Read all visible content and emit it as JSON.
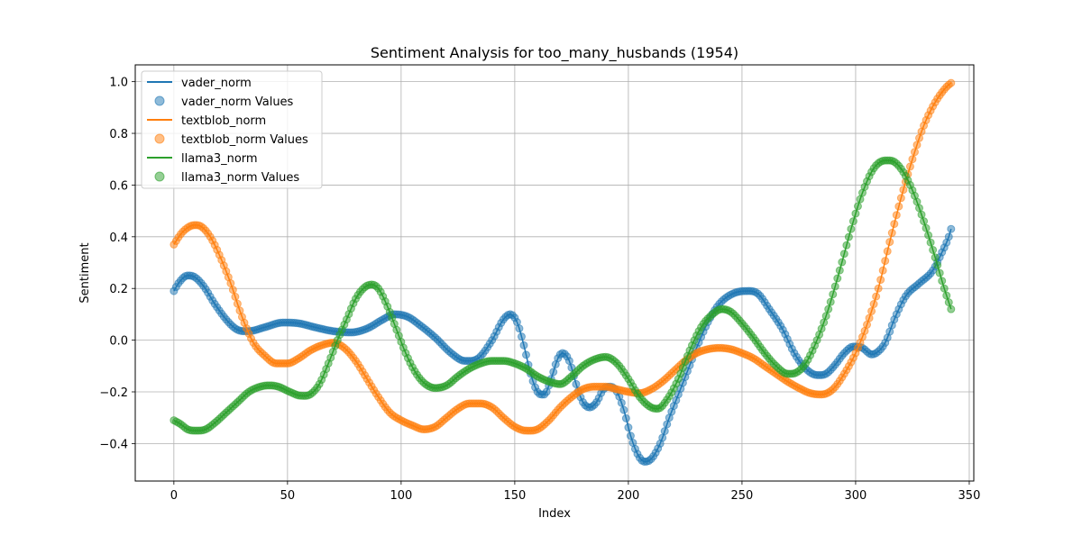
{
  "chart_data": {
    "type": "line",
    "title": "Sentiment Analysis for too_many_husbands (1954)",
    "xlabel": "Index",
    "ylabel": "Sentiment",
    "xlim": [
      -17,
      352
    ],
    "ylim": [
      -0.545,
      1.065
    ],
    "xticks": [
      0,
      50,
      100,
      150,
      200,
      250,
      300,
      350
    ],
    "yticks": [
      -0.4,
      -0.2,
      0.0,
      0.2,
      0.4,
      0.6,
      0.8,
      1.0
    ],
    "xtick_labels": [
      "0",
      "50",
      "100",
      "150",
      "200",
      "250",
      "300",
      "350"
    ],
    "ytick_labels": [
      "−0.4",
      "−0.2",
      "0.0",
      "0.2",
      "0.4",
      "0.6",
      "0.8",
      "1.0"
    ],
    "grid": true,
    "legend": "top-left",
    "n_points": 343,
    "series": [
      {
        "name": "vader_norm",
        "scatter_name": "vader_norm Values",
        "color": "#1f77b4",
        "keypoints": [
          [
            0,
            0.19
          ],
          [
            2,
            0.22
          ],
          [
            6,
            0.25
          ],
          [
            9,
            0.245
          ],
          [
            13,
            0.21
          ],
          [
            18,
            0.14
          ],
          [
            24,
            0.07
          ],
          [
            28,
            0.04
          ],
          [
            33,
            0.035
          ],
          [
            40,
            0.05
          ],
          [
            48,
            0.068
          ],
          [
            55,
            0.065
          ],
          [
            62,
            0.05
          ],
          [
            70,
            0.035
          ],
          [
            78,
            0.03
          ],
          [
            85,
            0.045
          ],
          [
            92,
            0.08
          ],
          [
            97,
            0.1
          ],
          [
            103,
            0.09
          ],
          [
            108,
            0.06
          ],
          [
            115,
            0.01
          ],
          [
            122,
            -0.05
          ],
          [
            128,
            -0.08
          ],
          [
            134,
            -0.07
          ],
          [
            140,
            0.0
          ],
          [
            145,
            0.08
          ],
          [
            148,
            0.1
          ],
          [
            151,
            0.07
          ],
          [
            154,
            -0.02
          ],
          [
            157,
            -0.13
          ],
          [
            160,
            -0.2
          ],
          [
            163,
            -0.21
          ],
          [
            166,
            -0.15
          ],
          [
            169,
            -0.07
          ],
          [
            171,
            -0.05
          ],
          [
            174,
            -0.08
          ],
          [
            177,
            -0.17
          ],
          [
            180,
            -0.24
          ],
          [
            183,
            -0.26
          ],
          [
            186,
            -0.24
          ],
          [
            189,
            -0.19
          ],
          [
            192,
            -0.18
          ],
          [
            195,
            -0.2
          ],
          [
            198,
            -0.27
          ],
          [
            201,
            -0.37
          ],
          [
            204,
            -0.44
          ],
          [
            207,
            -0.47
          ],
          [
            210,
            -0.46
          ],
          [
            214,
            -0.4
          ],
          [
            218,
            -0.3
          ],
          [
            222,
            -0.21
          ],
          [
            226,
            -0.12
          ],
          [
            230,
            -0.03
          ],
          [
            235,
            0.07
          ],
          [
            240,
            0.14
          ],
          [
            246,
            0.18
          ],
          [
            252,
            0.19
          ],
          [
            257,
            0.18
          ],
          [
            262,
            0.12
          ],
          [
            268,
            0.04
          ],
          [
            273,
            -0.05
          ],
          [
            278,
            -0.11
          ],
          [
            283,
            -0.135
          ],
          [
            287,
            -0.13
          ],
          [
            291,
            -0.095
          ],
          [
            295,
            -0.05
          ],
          [
            299,
            -0.025
          ],
          [
            303,
            -0.03
          ],
          [
            307,
            -0.055
          ],
          [
            309,
            -0.05
          ],
          [
            313,
            -0.01
          ],
          [
            317,
            0.08
          ],
          [
            322,
            0.17
          ],
          [
            328,
            0.22
          ],
          [
            334,
            0.27
          ],
          [
            338,
            0.34
          ],
          [
            341,
            0.4
          ],
          [
            342,
            0.43
          ]
        ]
      },
      {
        "name": "textblob_norm",
        "scatter_name": "textblob_norm Values",
        "color": "#ff7f0e",
        "keypoints": [
          [
            0,
            0.37
          ],
          [
            3,
            0.41
          ],
          [
            6,
            0.435
          ],
          [
            9,
            0.445
          ],
          [
            12,
            0.44
          ],
          [
            16,
            0.4
          ],
          [
            20,
            0.33
          ],
          [
            25,
            0.22
          ],
          [
            30,
            0.09
          ],
          [
            35,
            -0.01
          ],
          [
            40,
            -0.06
          ],
          [
            45,
            -0.09
          ],
          [
            50,
            -0.09
          ],
          [
            55,
            -0.07
          ],
          [
            60,
            -0.04
          ],
          [
            65,
            -0.02
          ],
          [
            70,
            -0.01
          ],
          [
            75,
            -0.03
          ],
          [
            80,
            -0.08
          ],
          [
            85,
            -0.15
          ],
          [
            90,
            -0.22
          ],
          [
            95,
            -0.28
          ],
          [
            100,
            -0.31
          ],
          [
            105,
            -0.33
          ],
          [
            110,
            -0.345
          ],
          [
            115,
            -0.335
          ],
          [
            120,
            -0.3
          ],
          [
            125,
            -0.265
          ],
          [
            130,
            -0.245
          ],
          [
            135,
            -0.245
          ],
          [
            140,
            -0.26
          ],
          [
            145,
            -0.3
          ],
          [
            150,
            -0.335
          ],
          [
            155,
            -0.35
          ],
          [
            160,
            -0.345
          ],
          [
            165,
            -0.31
          ],
          [
            170,
            -0.26
          ],
          [
            175,
            -0.22
          ],
          [
            180,
            -0.19
          ],
          [
            185,
            -0.18
          ],
          [
            190,
            -0.18
          ],
          [
            195,
            -0.19
          ],
          [
            200,
            -0.2
          ],
          [
            205,
            -0.205
          ],
          [
            210,
            -0.19
          ],
          [
            215,
            -0.16
          ],
          [
            220,
            -0.12
          ],
          [
            225,
            -0.08
          ],
          [
            230,
            -0.05
          ],
          [
            235,
            -0.035
          ],
          [
            240,
            -0.03
          ],
          [
            245,
            -0.035
          ],
          [
            250,
            -0.05
          ],
          [
            255,
            -0.07
          ],
          [
            260,
            -0.1
          ],
          [
            265,
            -0.13
          ],
          [
            270,
            -0.16
          ],
          [
            275,
            -0.185
          ],
          [
            280,
            -0.205
          ],
          [
            285,
            -0.21
          ],
          [
            290,
            -0.19
          ],
          [
            295,
            -0.13
          ],
          [
            300,
            -0.05
          ],
          [
            305,
            0.06
          ],
          [
            310,
            0.2
          ],
          [
            315,
            0.38
          ],
          [
            320,
            0.55
          ],
          [
            325,
            0.7
          ],
          [
            330,
            0.83
          ],
          [
            335,
            0.92
          ],
          [
            340,
            0.98
          ],
          [
            342,
            0.995
          ]
        ]
      },
      {
        "name": "llama3_norm",
        "scatter_name": "llama3_norm Values",
        "color": "#2ca02c",
        "keypoints": [
          [
            0,
            -0.31
          ],
          [
            3,
            -0.325
          ],
          [
            6,
            -0.345
          ],
          [
            10,
            -0.35
          ],
          [
            14,
            -0.345
          ],
          [
            18,
            -0.32
          ],
          [
            23,
            -0.28
          ],
          [
            28,
            -0.24
          ],
          [
            33,
            -0.2
          ],
          [
            38,
            -0.18
          ],
          [
            42,
            -0.175
          ],
          [
            46,
            -0.18
          ],
          [
            51,
            -0.2
          ],
          [
            56,
            -0.215
          ],
          [
            60,
            -0.21
          ],
          [
            64,
            -0.17
          ],
          [
            68,
            -0.09
          ],
          [
            72,
            0.0
          ],
          [
            76,
            0.08
          ],
          [
            80,
            0.16
          ],
          [
            84,
            0.205
          ],
          [
            87,
            0.215
          ],
          [
            90,
            0.2
          ],
          [
            94,
            0.13
          ],
          [
            98,
            0.04
          ],
          [
            102,
            -0.05
          ],
          [
            106,
            -0.12
          ],
          [
            110,
            -0.165
          ],
          [
            115,
            -0.185
          ],
          [
            120,
            -0.175
          ],
          [
            125,
            -0.14
          ],
          [
            130,
            -0.11
          ],
          [
            135,
            -0.09
          ],
          [
            140,
            -0.08
          ],
          [
            145,
            -0.08
          ],
          [
            150,
            -0.09
          ],
          [
            155,
            -0.11
          ],
          [
            160,
            -0.14
          ],
          [
            165,
            -0.16
          ],
          [
            170,
            -0.17
          ],
          [
            175,
            -0.14
          ],
          [
            180,
            -0.1
          ],
          [
            185,
            -0.075
          ],
          [
            190,
            -0.065
          ],
          [
            195,
            -0.09
          ],
          [
            200,
            -0.15
          ],
          [
            205,
            -0.22
          ],
          [
            210,
            -0.26
          ],
          [
            213,
            -0.265
          ],
          [
            217,
            -0.23
          ],
          [
            222,
            -0.15
          ],
          [
            227,
            -0.04
          ],
          [
            232,
            0.05
          ],
          [
            237,
            0.1
          ],
          [
            241,
            0.12
          ],
          [
            245,
            0.11
          ],
          [
            250,
            0.065
          ],
          [
            255,
            0.01
          ],
          [
            260,
            -0.05
          ],
          [
            265,
            -0.1
          ],
          [
            270,
            -0.13
          ],
          [
            274,
            -0.125
          ],
          [
            278,
            -0.09
          ],
          [
            283,
            0.0
          ],
          [
            288,
            0.12
          ],
          [
            293,
            0.27
          ],
          [
            298,
            0.43
          ],
          [
            303,
            0.57
          ],
          [
            308,
            0.665
          ],
          [
            313,
            0.695
          ],
          [
            317,
            0.69
          ],
          [
            321,
            0.65
          ],
          [
            325,
            0.58
          ],
          [
            330,
            0.46
          ],
          [
            335,
            0.32
          ],
          [
            339,
            0.2
          ],
          [
            342,
            0.12
          ]
        ]
      }
    ]
  }
}
